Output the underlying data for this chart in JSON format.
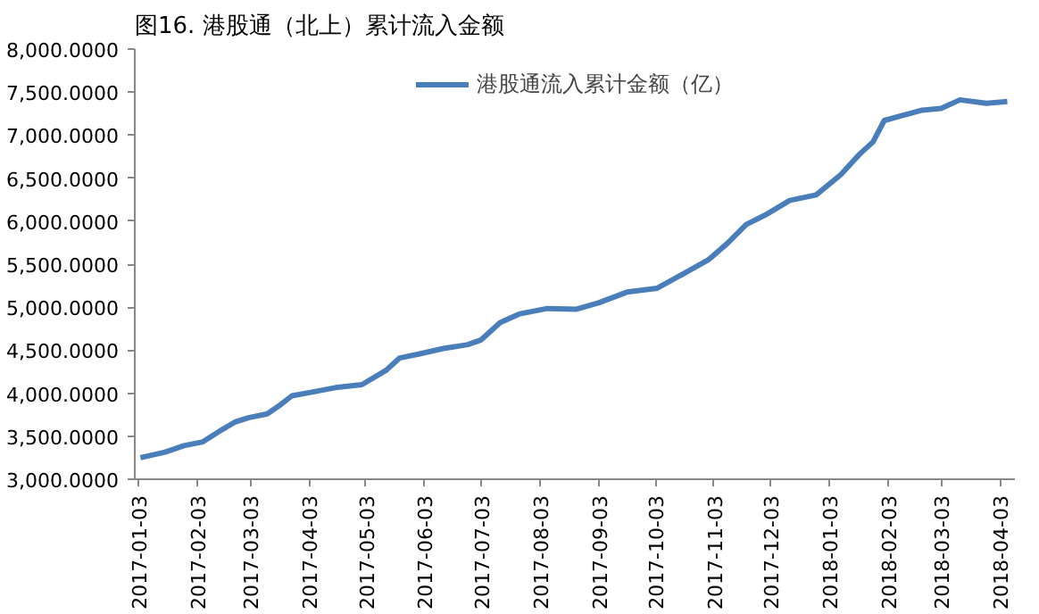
{
  "chart_data": {
    "type": "line",
    "title": "图16. 港股通（北上）累计流入金额",
    "x": [
      "2017-01-04",
      "2017-01-17",
      "2017-01-27",
      "2017-02-06",
      "2017-02-16",
      "2017-02-23",
      "2017-03-02",
      "2017-03-12",
      "2017-03-18",
      "2017-03-25",
      "2017-04-04",
      "2017-04-17",
      "2017-05-01",
      "2017-05-14",
      "2017-05-21",
      "2017-05-31",
      "2017-06-13",
      "2017-06-26",
      "2017-07-03",
      "2017-07-13",
      "2017-07-23",
      "2017-08-07",
      "2017-08-22",
      "2017-09-03",
      "2017-09-18",
      "2017-10-04",
      "2017-10-18",
      "2017-10-31",
      "2017-11-10",
      "2017-11-20",
      "2017-11-30",
      "2017-12-13",
      "2017-12-27",
      "2018-01-09",
      "2018-01-19",
      "2018-01-26",
      "2018-02-01",
      "2018-02-11",
      "2018-02-21",
      "2018-03-03",
      "2018-03-13",
      "2018-03-27",
      "2018-04-07"
    ],
    "series": [
      {
        "name": "港股通流入累计金额（亿）",
        "color": "#4a7ebb",
        "values": [
          3250,
          3315,
          3390,
          3435,
          3575,
          3665,
          3715,
          3760,
          3850,
          3970,
          4010,
          4065,
          4100,
          4270,
          4410,
          4455,
          4520,
          4565,
          4620,
          4820,
          4920,
          4985,
          4975,
          5050,
          5175,
          5220,
          5390,
          5550,
          5740,
          5960,
          6070,
          6240,
          6305,
          6540,
          6780,
          6920,
          7170,
          7230,
          7290,
          7310,
          7410,
          7370,
          7390
        ]
      }
    ],
    "xlim": [
      "2017-01-01",
      "2018-04-11"
    ],
    "xticks": [
      {
        "value": "2017-01-03",
        "label": "2017-01-03"
      },
      {
        "value": "2017-02-03",
        "label": "2017-02-03"
      },
      {
        "value": "2017-03-03",
        "label": "2017-03-03"
      },
      {
        "value": "2017-04-03",
        "label": "2017-04-03"
      },
      {
        "value": "2017-05-03",
        "label": "2017-05-03"
      },
      {
        "value": "2017-06-03",
        "label": "2017-06-03"
      },
      {
        "value": "2017-07-03",
        "label": "2017-07-03"
      },
      {
        "value": "2017-08-03",
        "label": "2017-08-03"
      },
      {
        "value": "2017-09-03",
        "label": "2017-09-03"
      },
      {
        "value": "2017-10-03",
        "label": "2017-10-03"
      },
      {
        "value": "2017-11-03",
        "label": "2017-11-03"
      },
      {
        "value": "2017-12-03",
        "label": "2017-12-03"
      },
      {
        "value": "2018-01-03",
        "label": "2018-01-03"
      },
      {
        "value": "2018-02-03",
        "label": "2018-02-03"
      },
      {
        "value": "2018-03-03",
        "label": "2018-03-03"
      },
      {
        "value": "2018-04-03",
        "label": "2018-04-03"
      }
    ],
    "ylim": [
      3000,
      8000
    ],
    "yticks": [
      {
        "value": 3000,
        "label": "3,000.0000"
      },
      {
        "value": 3500,
        "label": "3,500.0000"
      },
      {
        "value": 4000,
        "label": "4,000.0000"
      },
      {
        "value": 4500,
        "label": "4,500.0000"
      },
      {
        "value": 5000,
        "label": "5,000.0000"
      },
      {
        "value": 5500,
        "label": "5,500.0000"
      },
      {
        "value": 6000,
        "label": "6,000.0000"
      },
      {
        "value": 6500,
        "label": "6,500.0000"
      },
      {
        "value": 7000,
        "label": "7,000.0000"
      },
      {
        "value": 7500,
        "label": "7,500.0000"
      },
      {
        "value": 8000,
        "label": "8,000.0000"
      }
    ],
    "grid": false,
    "legend": "top",
    "marker": "none",
    "line_style": "solid"
  }
}
